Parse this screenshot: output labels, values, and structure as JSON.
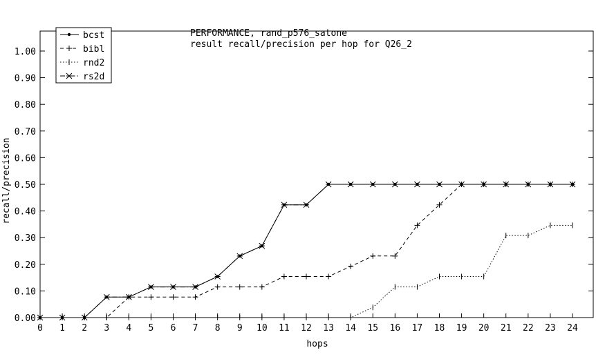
{
  "chart_data": {
    "type": "line",
    "title": "PERFORMANCE, rand_p576_satone",
    "subtitle": "result recall/precision per hop for Q26_2",
    "xlabel": "hops",
    "ylabel": "recall/precision",
    "x": [
      0,
      1,
      2,
      3,
      4,
      5,
      6,
      7,
      8,
      9,
      10,
      11,
      12,
      13,
      14,
      15,
      16,
      17,
      18,
      19,
      20,
      21,
      22,
      23,
      24
    ],
    "xlim": [
      0,
      24
    ],
    "ylim": [
      0,
      1.0
    ],
    "yticks": [
      "0.00",
      "0.10",
      "0.20",
      "0.30",
      "0.40",
      "0.50",
      "0.60",
      "0.70",
      "0.80",
      "0.90",
      "1.00"
    ],
    "xticks": [
      "0",
      "1",
      "2",
      "3",
      "4",
      "5",
      "6",
      "7",
      "8",
      "9",
      "10",
      "11",
      "12",
      "13",
      "14",
      "15",
      "16",
      "17",
      "18",
      "19",
      "20",
      "21",
      "22",
      "23",
      "24"
    ],
    "grid": "y-ticks",
    "legend_position": "top-left",
    "series": [
      {
        "name": "bcst",
        "dash": "solid",
        "marker": "dot",
        "values": [
          0,
          0,
          0,
          0.077,
          0.077,
          0.115,
          0.115,
          0.115,
          0.154,
          0.231,
          0.269,
          0.423,
          0.423,
          0.5,
          0.5,
          0.5,
          0.5,
          0.5,
          0.5,
          0.5,
          0.5,
          0.5,
          0.5,
          0.5,
          0.5
        ]
      },
      {
        "name": "bibl",
        "dash": "dashed",
        "marker": "plus",
        "values": [
          0,
          0,
          0,
          0,
          0.077,
          0.077,
          0.077,
          0.077,
          0.115,
          0.115,
          0.115,
          0.154,
          0.154,
          0.154,
          0.192,
          0.231,
          0.231,
          0.346,
          0.423,
          0.5,
          0.5,
          0.5,
          0.5,
          0.5,
          0.5
        ]
      },
      {
        "name": "rnd2",
        "dash": "dotted",
        "marker": "tick",
        "values": [
          0,
          0,
          0,
          0,
          0,
          0,
          0,
          0,
          0,
          0,
          0,
          0,
          0,
          0,
          0,
          0.038,
          0.115,
          0.115,
          0.154,
          0.154,
          0.154,
          0.308,
          0.308,
          0.346,
          0.346
        ]
      },
      {
        "name": "rs2d",
        "dash": "dashdot",
        "marker": "star",
        "values": [
          0,
          0,
          0,
          0.077,
          0.077,
          0.115,
          0.115,
          0.115,
          0.154,
          0.231,
          0.269,
          0.423,
          0.423,
          0.5,
          0.5,
          0.5,
          0.5,
          0.5,
          0.5,
          0.5,
          0.5,
          0.5,
          0.5,
          0.5,
          0.5
        ]
      }
    ]
  }
}
